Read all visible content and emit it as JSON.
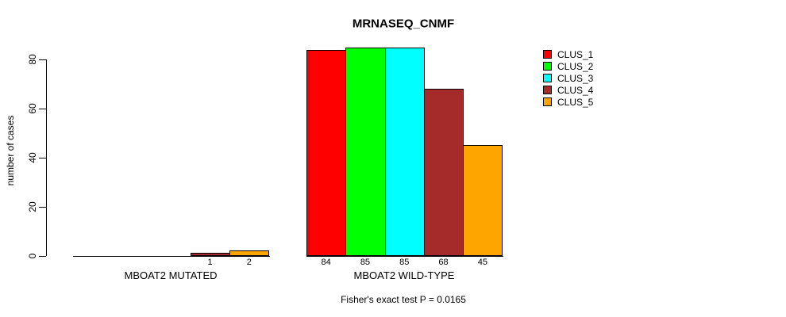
{
  "chart_data": {
    "type": "bar",
    "title": "MRNASEQ_CNMF",
    "ylabel": "number of cases",
    "xlabel": "",
    "ylim": [
      0,
      85
    ],
    "yticks": [
      0,
      20,
      40,
      60,
      80
    ],
    "grid": false,
    "legend": {
      "position": "top-right",
      "entries": [
        {
          "label": "CLUS_1",
          "color": "#FF0000"
        },
        {
          "label": "CLUS_2",
          "color": "#00FF00"
        },
        {
          "label": "CLUS_3",
          "color": "#00FFFF"
        },
        {
          "label": "CLUS_4",
          "color": "#A52A2A"
        },
        {
          "label": "CLUS_5",
          "color": "#FFA500"
        }
      ]
    },
    "groups": [
      {
        "label": "MBOAT2 MUTATED",
        "series": [
          "CLUS_1",
          "CLUS_2",
          "CLUS_3",
          "CLUS_4",
          "CLUS_5"
        ],
        "values": [
          0,
          0,
          0,
          1,
          2
        ],
        "bar_labels": [
          "",
          "",
          "",
          "1",
          "2"
        ]
      },
      {
        "label": "MBOAT2 WILD-TYPE",
        "series": [
          "CLUS_1",
          "CLUS_2",
          "CLUS_3",
          "CLUS_4",
          "CLUS_5"
        ],
        "values": [
          84,
          85,
          85,
          68,
          45
        ],
        "bar_labels": [
          "84",
          "85",
          "85",
          "68",
          "45"
        ]
      }
    ],
    "footnote": "Fisher's exact test P = 0.0165"
  }
}
